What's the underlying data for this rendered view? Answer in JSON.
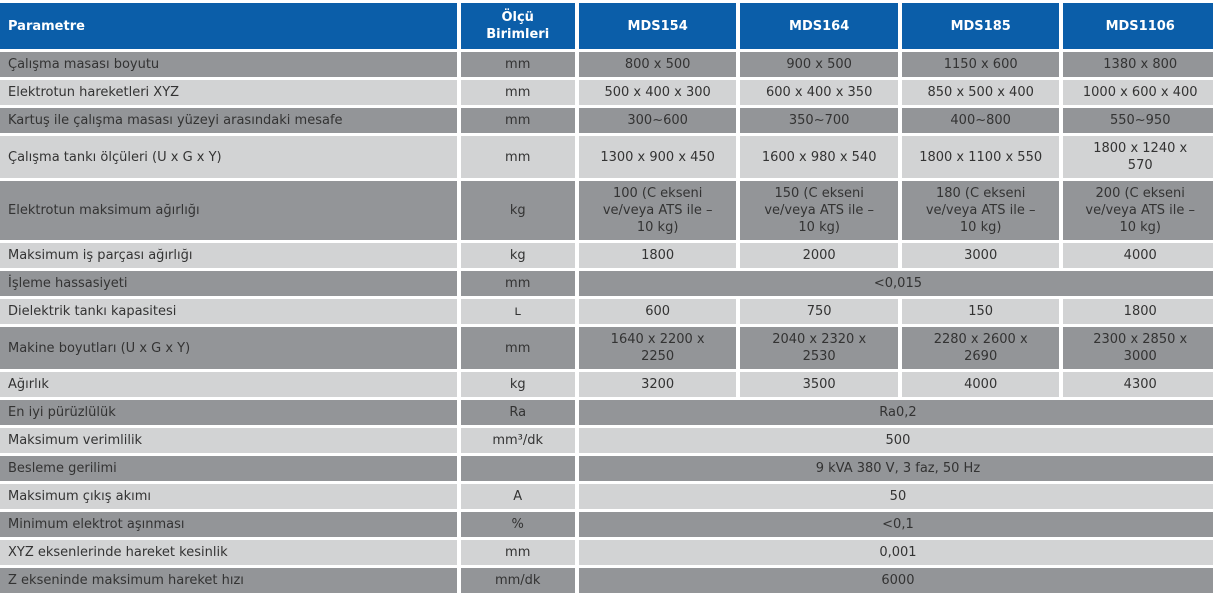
{
  "table": {
    "header": {
      "parameter": "Parametre",
      "unit": "Ölçü Birimleri",
      "models": [
        "MDS154",
        "MDS164",
        "MDS185",
        "MDS1106"
      ]
    },
    "rows": [
      {
        "parameter": "Çalışma masası boyutu",
        "unit": "mm",
        "values": [
          "800 x 500",
          "900 x 500",
          "1150 x 600",
          "1380 x 800"
        ]
      },
      {
        "parameter": "Elektrotun hareketleri XYZ",
        "unit": "mm",
        "values": [
          "500 x 400 x 300",
          "600 x 400 x 350",
          "850 x 500 x 400",
          "1000 x 600 x 400"
        ]
      },
      {
        "parameter": "Kartuş ile çalışma masası yüzeyi arasındaki mesafe",
        "unit": "mm",
        "values": [
          "300~600",
          "350~700",
          "400~800",
          "550~950"
        ]
      },
      {
        "parameter": "Çalışma tankı ölçüleri (U x G x Y)",
        "unit": "mm",
        "values": [
          "1300 x 900 x 450",
          "1600 x 980 x 540",
          "1800 x 1100 x 550",
          "1800 x 1240 x 570"
        ]
      },
      {
        "parameter": "Elektrotun maksimum ağırlığı",
        "unit": "kg",
        "values": [
          "100 (C ekseni ve/veya ATS ile – 10 kg)",
          "150 (C ekseni ve/veya ATS ile – 10 kg)",
          "180 (C ekseni ve/veya ATS ile – 10 kg)",
          "200 (C ekseni ve/veya ATS ile – 10 kg)"
        ]
      },
      {
        "parameter": "Maksimum iş parçası ağırlığı",
        "unit": "kg",
        "values": [
          "1800",
          "2000",
          "3000",
          "4000"
        ]
      },
      {
        "parameter": "İşleme hassasiyeti",
        "unit": "mm",
        "merged": "<0,015"
      },
      {
        "parameter": "Dielektrik tankı kapasitesi",
        "unit": "ʟ",
        "values": [
          "600",
          "750",
          "150",
          "1800"
        ]
      },
      {
        "parameter": "Makine boyutları (U x G x Y)",
        "unit": "mm",
        "values": [
          "1640 x 2200 x 2250",
          "2040 x 2320 x 2530",
          "2280 x 2600 x 2690",
          "2300 x 2850 x 3000"
        ]
      },
      {
        "parameter": "Ağırlık",
        "unit": "kg",
        "values": [
          "3200",
          "3500",
          "4000",
          "4300"
        ]
      },
      {
        "parameter": "En iyi pürüzlülük",
        "unit": "Ra",
        "merged": "Ra0,2"
      },
      {
        "parameter": "Maksimum verimlilik",
        "unit": "mm³/dk",
        "merged": "500"
      },
      {
        "parameter": "Besleme gerilimi",
        "unit": "",
        "merged": "9 kVA 380 V, 3 faz, 50 Hz"
      },
      {
        "parameter": "Maksimum çıkış akımı",
        "unit": "A",
        "merged": "50"
      },
      {
        "parameter": "Minimum elektrot aşınması",
        "unit": "%",
        "merged": "<0,1"
      },
      {
        "parameter": "XYZ eksenlerinde hareket kesinlik",
        "unit": "mm",
        "merged": "0,001"
      },
      {
        "parameter": "Z ekseninde maksimum hareket hızı",
        "unit": "mm/dk",
        "merged": "6000"
      }
    ],
    "colors": {
      "header_bg": "#0b5ea9",
      "header_text": "#ffffff",
      "row_dark": "#939598",
      "row_light": "#d2d3d4",
      "body_text": "#333333",
      "separator": "#ffffff"
    }
  }
}
